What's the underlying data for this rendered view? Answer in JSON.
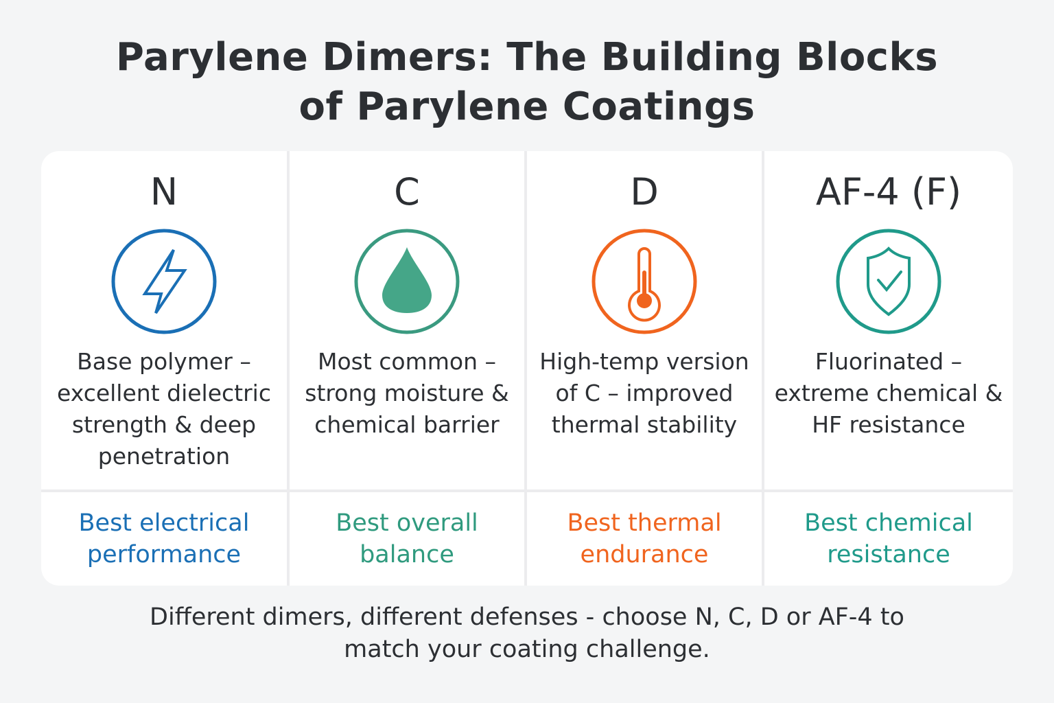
{
  "title": [
    "Parylene Dimers: The Building Blocks",
    "of Parylene Coatings"
  ],
  "columns": [
    {
      "name": "N",
      "icon": "lightning-bolt-icon",
      "color": "#1a6fb5",
      "description": "Base polymer – excellent dielectric strength & deep penetration",
      "best": "Best electrical performance"
    },
    {
      "name": "C",
      "icon": "water-drop-icon",
      "color": "#3a9a80",
      "description": "Most common – strong moisture & chemical barrier",
      "best": "Best overall balance"
    },
    {
      "name": "D",
      "icon": "thermometer-icon",
      "color": "#f0641e",
      "description": "High-temp version of C – improved thermal stability",
      "best": "Best thermal endurance"
    },
    {
      "name": "AF-4 (F)",
      "icon": "shield-check-icon",
      "color": "#1f9a8a",
      "description": "Fluorinated – extreme chemical & HF resistance",
      "best": "Best chemical resistance"
    }
  ],
  "footer": "Different dimers, different defenses - choose N, C, D or AF-4 to match your coating challenge."
}
